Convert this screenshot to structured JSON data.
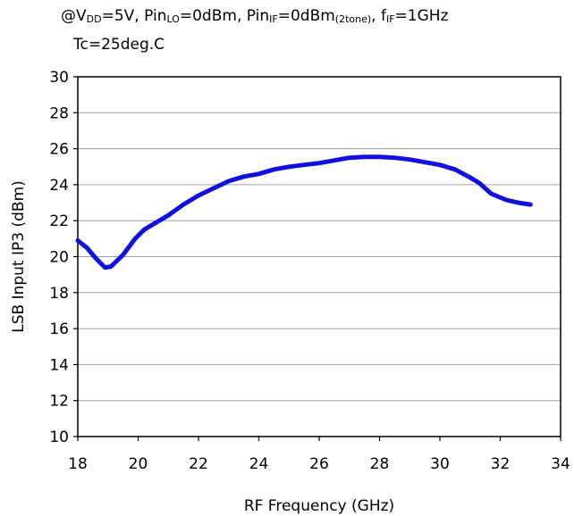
{
  "conditions": {
    "line1": {
      "prefix": "@V",
      "vdd_sub": "DD",
      "vdd_value": "=5V, Pin",
      "lo_sub": "LO",
      "lo_value": "=0dBm, Pin",
      "if_sub": "IF",
      "if_value": "=0dBm",
      "tone_sub": "(2tone)",
      "f_prefix": ", f",
      "fif_sub": "IF",
      "fif_value": "=1GHz"
    },
    "line2": "Tc=25deg.C"
  },
  "chart_data": {
    "type": "line",
    "title": "",
    "xlabel": "RF Frequency (GHz)",
    "ylabel": "LSB Input IP3 (dBm)",
    "xlim": [
      18,
      34
    ],
    "ylim": [
      10,
      30
    ],
    "xticks": [
      "18",
      "20",
      "22",
      "24",
      "26",
      "28",
      "30",
      "32",
      "34"
    ],
    "yticks": [
      "10",
      "12",
      "14",
      "16",
      "18",
      "20",
      "22",
      "24",
      "26",
      "28",
      "30"
    ],
    "grid": "horizontal",
    "legend": "none",
    "series": [
      {
        "color": "#1010e0",
        "x": [
          18.0,
          18.3,
          18.6,
          18.9,
          19.1,
          19.5,
          19.9,
          20.2,
          20.5,
          21.0,
          21.5,
          22.0,
          22.5,
          23.0,
          23.5,
          24.0,
          24.5,
          25.0,
          25.5,
          26.0,
          26.5,
          27.0,
          27.5,
          28.0,
          28.5,
          29.0,
          29.5,
          30.0,
          30.5,
          31.0,
          31.3,
          31.7,
          32.2,
          32.6,
          33.0
        ],
        "y": [
          20.9,
          20.5,
          19.9,
          19.4,
          19.45,
          20.1,
          21.0,
          21.5,
          21.8,
          22.3,
          22.9,
          23.4,
          23.8,
          24.2,
          24.45,
          24.6,
          24.85,
          25.0,
          25.1,
          25.2,
          25.35,
          25.5,
          25.55,
          25.55,
          25.5,
          25.4,
          25.25,
          25.1,
          24.85,
          24.4,
          24.1,
          23.5,
          23.15,
          23.0,
          22.9
        ]
      }
    ]
  }
}
